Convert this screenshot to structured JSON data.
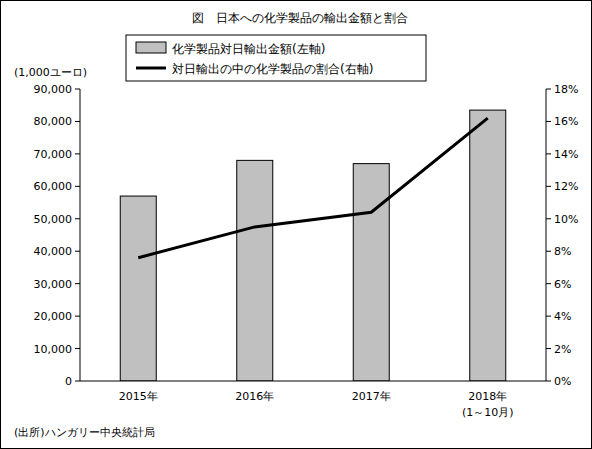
{
  "chart_data": {
    "type": "bar",
    "title": "図　日本への化学製品の輸出金額と割合",
    "ylabel": "(1,000ユーロ)",
    "source": "(出所)ハンガリー中央統計局",
    "categories": [
      "2015年",
      "2016年",
      "2017年",
      "2018年\n(1～10月)"
    ],
    "series": [
      {
        "name": "化学製品対日輸出金額(左軸)",
        "type": "bar",
        "color": "#c0c0c0",
        "values": [
          57000,
          68000,
          67000,
          83500
        ]
      },
      {
        "name": "対日輸出の中の化学製品の割合(右軸)",
        "type": "line",
        "axis": "y2",
        "color": "#000000",
        "values": [
          7.6,
          9.5,
          10.4,
          16.2
        ]
      }
    ],
    "ylim": [
      0,
      90000
    ],
    "yticks": [
      0,
      {
        "value": 10000,
        "label": "10,000"
      },
      {
        "value": 20000,
        "label": "20,000"
      },
      {
        "value": 30000,
        "label": "30,000"
      },
      {
        "value": 40000,
        "label": "40,000"
      },
      {
        "value": 50000,
        "label": "50,000"
      },
      {
        "value": 60000,
        "label": "60,000"
      },
      {
        "value": 70000,
        "label": "70,000"
      },
      {
        "value": 80000,
        "label": "80,000"
      },
      {
        "value": 90000,
        "label": "90,000"
      }
    ],
    "y2lim": [
      0,
      18
    ],
    "y2ticks": [
      {
        "value": 0,
        "label": "0%"
      },
      {
        "value": 2,
        "label": "2%"
      },
      {
        "value": 4,
        "label": "4%"
      },
      {
        "value": 6,
        "label": "6%"
      },
      {
        "value": 8,
        "label": "8%"
      },
      {
        "value": 10,
        "label": "10%"
      },
      {
        "value": 12,
        "label": "12%"
      },
      {
        "value": 14,
        "label": "14%"
      },
      {
        "value": 16,
        "label": "16%"
      },
      {
        "value": 18,
        "label": "18%"
      }
    ],
    "grid": false,
    "legend": "top"
  }
}
